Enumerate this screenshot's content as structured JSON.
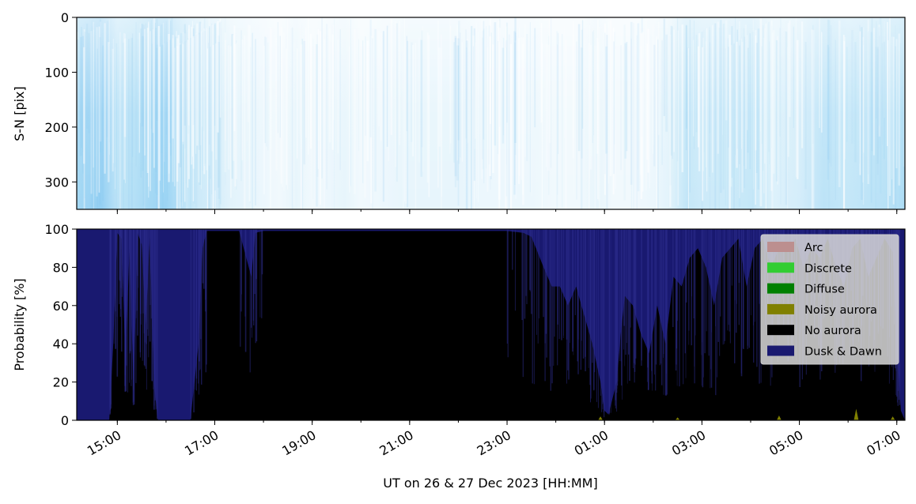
{
  "chart_data": [
    {
      "type": "heatmap",
      "ylabel": "S-N [pix]",
      "ylim": [
        350,
        0
      ],
      "yticks": [
        0,
        100,
        200,
        300
      ],
      "colormap": [
        "#ffffff",
        "#dff2fb",
        "#a9dbf5",
        "#72bdef"
      ],
      "xlim": [
        "2023-12-26 14:10",
        "2023-12-27 07:10"
      ],
      "intensity_profile": {
        "x": [
          "14:10",
          "14:40",
          "15:00",
          "15:20",
          "15:40",
          "16:00",
          "16:20",
          "16:40",
          "17:00",
          "17:20",
          "17:40",
          "18:00",
          "18:20",
          "18:40",
          "19:00",
          "19:20",
          "19:40",
          "20:00",
          "20:30",
          "21:00",
          "21:30",
          "22:00",
          "22:30",
          "23:00",
          "23:30",
          "00:00",
          "00:30",
          "00:50",
          "01:10",
          "01:30",
          "02:00",
          "02:20",
          "02:40",
          "03:00",
          "03:30",
          "04:00",
          "04:30",
          "05:00",
          "05:30",
          "06:00",
          "06:30",
          "07:00",
          "07:10"
        ],
        "values": [
          0.7,
          0.8,
          0.55,
          0.6,
          0.7,
          0.75,
          0.55,
          0.45,
          0.4,
          0.3,
          0.25,
          0.2,
          0.15,
          0.25,
          0.15,
          0.2,
          0.25,
          0.15,
          0.2,
          0.25,
          0.25,
          0.25,
          0.2,
          0.2,
          0.2,
          0.15,
          0.15,
          0.25,
          0.15,
          0.15,
          0.2,
          0.3,
          0.5,
          0.45,
          0.45,
          0.5,
          0.35,
          0.4,
          0.55,
          0.5,
          0.55,
          0.6,
          0.65
        ]
      }
    },
    {
      "type": "area",
      "ylabel": "Probability [%]",
      "xlabel": "UT on 26 & 27 Dec 2023 [HH:MM]",
      "ylim": [
        0,
        100
      ],
      "yticks": [
        0,
        20,
        40,
        60,
        80,
        100
      ],
      "xticks": [
        "15:00",
        "17:00",
        "19:00",
        "21:00",
        "23:00",
        "01:00",
        "03:00",
        "05:00",
        "07:00"
      ],
      "xlim": [
        "2023-12-26 14:10",
        "2023-12-27 07:10"
      ],
      "legend_position": "top-right",
      "grid": false,
      "series": [
        {
          "name": "Arc",
          "color": "#bc8f8f"
        },
        {
          "name": "Discrete",
          "color": "#32cd32"
        },
        {
          "name": "Diffuse",
          "color": "#008000"
        },
        {
          "name": "Noisy aurora",
          "color": "#808000"
        },
        {
          "name": "No aurora",
          "color": "#000000"
        },
        {
          "name": "Dusk & Dawn",
          "color": "#191970"
        }
      ],
      "no_aurora_percent": {
        "x": [
          "14:10",
          "14:50",
          "14:55",
          "15:00",
          "15:05",
          "15:10",
          "15:15",
          "15:20",
          "15:25",
          "15:30",
          "15:35",
          "15:40",
          "15:45",
          "15:50",
          "16:30",
          "16:40",
          "16:45",
          "16:50",
          "17:00",
          "17:30",
          "17:45",
          "17:50",
          "18:00",
          "18:30",
          "19:00",
          "20:00",
          "21:00",
          "22:00",
          "23:00",
          "23:20",
          "23:30",
          "23:45",
          "23:55",
          "00:05",
          "00:15",
          "00:25",
          "00:35",
          "00:45",
          "00:55",
          "01:00",
          "01:05",
          "01:15",
          "01:20",
          "01:25",
          "01:35",
          "01:45",
          "01:55",
          "02:05",
          "02:15",
          "02:25",
          "02:35",
          "02:45",
          "02:55",
          "03:05",
          "03:15",
          "03:25",
          "03:35",
          "03:45",
          "03:55",
          "04:05",
          "04:15",
          "04:25",
          "04:35",
          "04:45",
          "04:55",
          "05:05",
          "05:15",
          "05:25",
          "05:35",
          "05:45",
          "05:55",
          "06:05",
          "06:15",
          "06:25",
          "06:35",
          "06:45",
          "06:55",
          "07:00",
          "07:05",
          "07:10"
        ],
        "values": [
          0,
          0,
          40,
          98,
          95,
          30,
          90,
          15,
          98,
          92,
          50,
          96,
          20,
          0,
          0,
          40,
          90,
          99,
          99,
          99,
          75,
          98,
          99,
          99,
          99,
          99,
          99,
          99,
          99,
          98,
          96,
          80,
          70,
          70,
          60,
          70,
          55,
          40,
          20,
          5,
          3,
          20,
          45,
          65,
          60,
          45,
          35,
          60,
          40,
          75,
          70,
          85,
          90,
          80,
          60,
          85,
          90,
          95,
          70,
          90,
          95,
          80,
          90,
          88,
          95,
          80,
          90,
          85,
          95,
          80,
          70,
          90,
          95,
          75,
          85,
          95,
          88,
          40,
          5,
          0
        ]
      }
    }
  ]
}
